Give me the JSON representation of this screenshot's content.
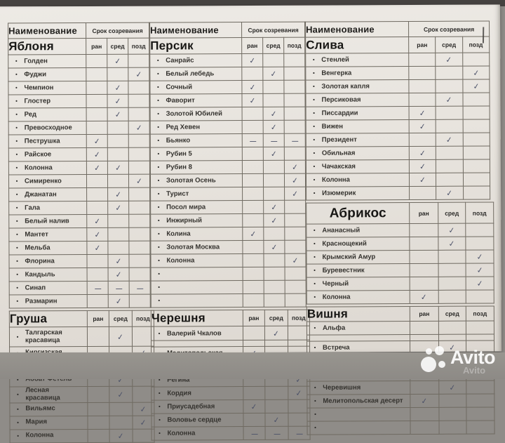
{
  "headers": {
    "name": "Наименование",
    "ripening": "Срок созревания",
    "early": "ран",
    "mid": "сред",
    "late": "позд"
  },
  "watermark": {
    "brand": "Avito"
  },
  "groups": [
    {
      "sections": [
        {
          "title": "Яблоня",
          "top_header": true,
          "rows": [
            {
              "n": "Голден",
              "m": "c"
            },
            {
              "n": "Фуджи",
              "l": "c"
            },
            {
              "n": "Чемпион",
              "m": "c"
            },
            {
              "n": "Глостер",
              "m": "c"
            },
            {
              "n": "Ред",
              "m": "c"
            },
            {
              "n": "Превосходное",
              "l": "c"
            },
            {
              "n": "Пеструшка",
              "e": "c"
            },
            {
              "n": "Райское",
              "e": "c"
            },
            {
              "n": "Колонна",
              "e": "c",
              "m": "c"
            },
            {
              "n": "Симиренко",
              "l": "c"
            },
            {
              "n": "Джанатан",
              "m": "c"
            },
            {
              "n": "Гала",
              "m": "c"
            },
            {
              "n": "Белый налив",
              "e": "c"
            },
            {
              "n": "Мантет",
              "e": "c"
            },
            {
              "n": "Мельба",
              "e": "c"
            },
            {
              "n": "Флорина",
              "m": "c"
            },
            {
              "n": "Кандыль",
              "m": "c"
            },
            {
              "n": "Синап",
              "e": "d",
              "m": "d",
              "l": "d"
            },
            {
              "n": "Размарин",
              "m": "c"
            }
          ]
        },
        {
          "title": "Груша",
          "top_header": false,
          "rows": [
            {
              "n": "Талгарская красавица",
              "m": "c",
              "tall": true
            },
            {
              "n": "Киргизская",
              "l": "c"
            },
            {
              "n": "Бера Боск",
              "m": "c"
            },
            {
              "n": "Аббат Фетель",
              "m": "c"
            },
            {
              "n": "Лесная красавица",
              "m": "c"
            },
            {
              "n": "Вильямс",
              "l": "c"
            },
            {
              "n": "Мария",
              "l": "c"
            },
            {
              "n": "Колонна",
              "m": "c"
            }
          ]
        }
      ]
    },
    {
      "sections": [
        {
          "title": "Персик",
          "top_header": true,
          "rows": [
            {
              "n": "Санрайс",
              "e": "c"
            },
            {
              "n": "Белый лебедь",
              "m": "c"
            },
            {
              "n": "Сочный",
              "e": "c"
            },
            {
              "n": "Фаворит",
              "e": "c"
            },
            {
              "n": "Золотой Юбилей",
              "m": "c"
            },
            {
              "n": "Ред Хевен",
              "m": "c"
            },
            {
              "n": "Бьянко",
              "e": "d",
              "m": "d",
              "l": "d"
            },
            {
              "n": "Рубин 5",
              "m": "c"
            },
            {
              "n": "Рубин 8",
              "l": "c"
            },
            {
              "n": "Золотая Осень",
              "l": "c"
            },
            {
              "n": "Турист",
              "l": "c"
            },
            {
              "n": "Посол мира",
              "m": "c"
            },
            {
              "n": "Инжирный",
              "m": "c"
            },
            {
              "n": "Колина",
              "e": "c"
            },
            {
              "n": "Золотая Москва",
              "m": "c"
            },
            {
              "n": "Колонна",
              "l": "c"
            },
            {
              "n": ""
            },
            {
              "n": ""
            },
            {
              "n": ""
            }
          ]
        },
        {
          "title": "Черешня",
          "top_header": false,
          "rows": [
            {
              "n": "Валерий Чкалов",
              "m": "c",
              "tall": true
            },
            {
              "n": "",
              "b": false
            },
            {
              "n": "Мелитопольская",
              "e": "c"
            },
            {
              "n": "Крупноплодная",
              "m": "c"
            },
            {
              "n": "Регина",
              "l": "c"
            },
            {
              "n": "Кордия",
              "l": "c"
            },
            {
              "n": "Приусадебная",
              "e": "c"
            },
            {
              "n": "Воловье сердце",
              "m": "c"
            },
            {
              "n": "Колонна",
              "e": "d",
              "m": "d",
              "l": "d"
            }
          ]
        }
      ]
    },
    {
      "sections": [
        {
          "title": "Слива",
          "top_header": true,
          "rows": [
            {
              "n": "Стенлей",
              "m": "c"
            },
            {
              "n": "Венгерка",
              "l": "c"
            },
            {
              "n": "Золотая капля",
              "l": "c"
            },
            {
              "n": "Персиковая",
              "m": "c"
            },
            {
              "n": "Писсардии",
              "e": "c"
            },
            {
              "n": "Вижен",
              "e": "c"
            },
            {
              "n": "Президент",
              "m": "c"
            },
            {
              "n": "Обильная",
              "e": "c"
            },
            {
              "n": "Чачакская",
              "e": "c"
            },
            {
              "n": "Колонна",
              "e": "c"
            },
            {
              "n": "Изюмерик",
              "m": "c"
            }
          ]
        },
        {
          "title": "Абрикос",
          "top_header": false,
          "rows": [
            {
              "n": "Ананасный",
              "m": "c"
            },
            {
              "n": "Краснощекий",
              "m": "c"
            },
            {
              "n": "Крымский Амур",
              "l": "c"
            },
            {
              "n": "Буревестник",
              "l": "c"
            },
            {
              "n": "Черный",
              "l": "c"
            },
            {
              "n": "Колонна",
              "e": "c"
            }
          ]
        },
        {
          "title": "Вишня",
          "top_header": false,
          "rows": [
            {
              "n": "Альфа",
              "tall": true
            },
            {
              "n": "",
              "b": false
            },
            {
              "n": "Встреча",
              "m": "c"
            },
            {
              "n": "Подбельская",
              "m": "c"
            },
            {
              "n": "Чудо",
              "e": "c"
            },
            {
              "n": "Черевишня",
              "m": "c"
            },
            {
              "n": "Мелитопольская десерт",
              "e": "c"
            },
            {
              "n": ""
            },
            {
              "n": ""
            }
          ]
        }
      ]
    }
  ]
}
